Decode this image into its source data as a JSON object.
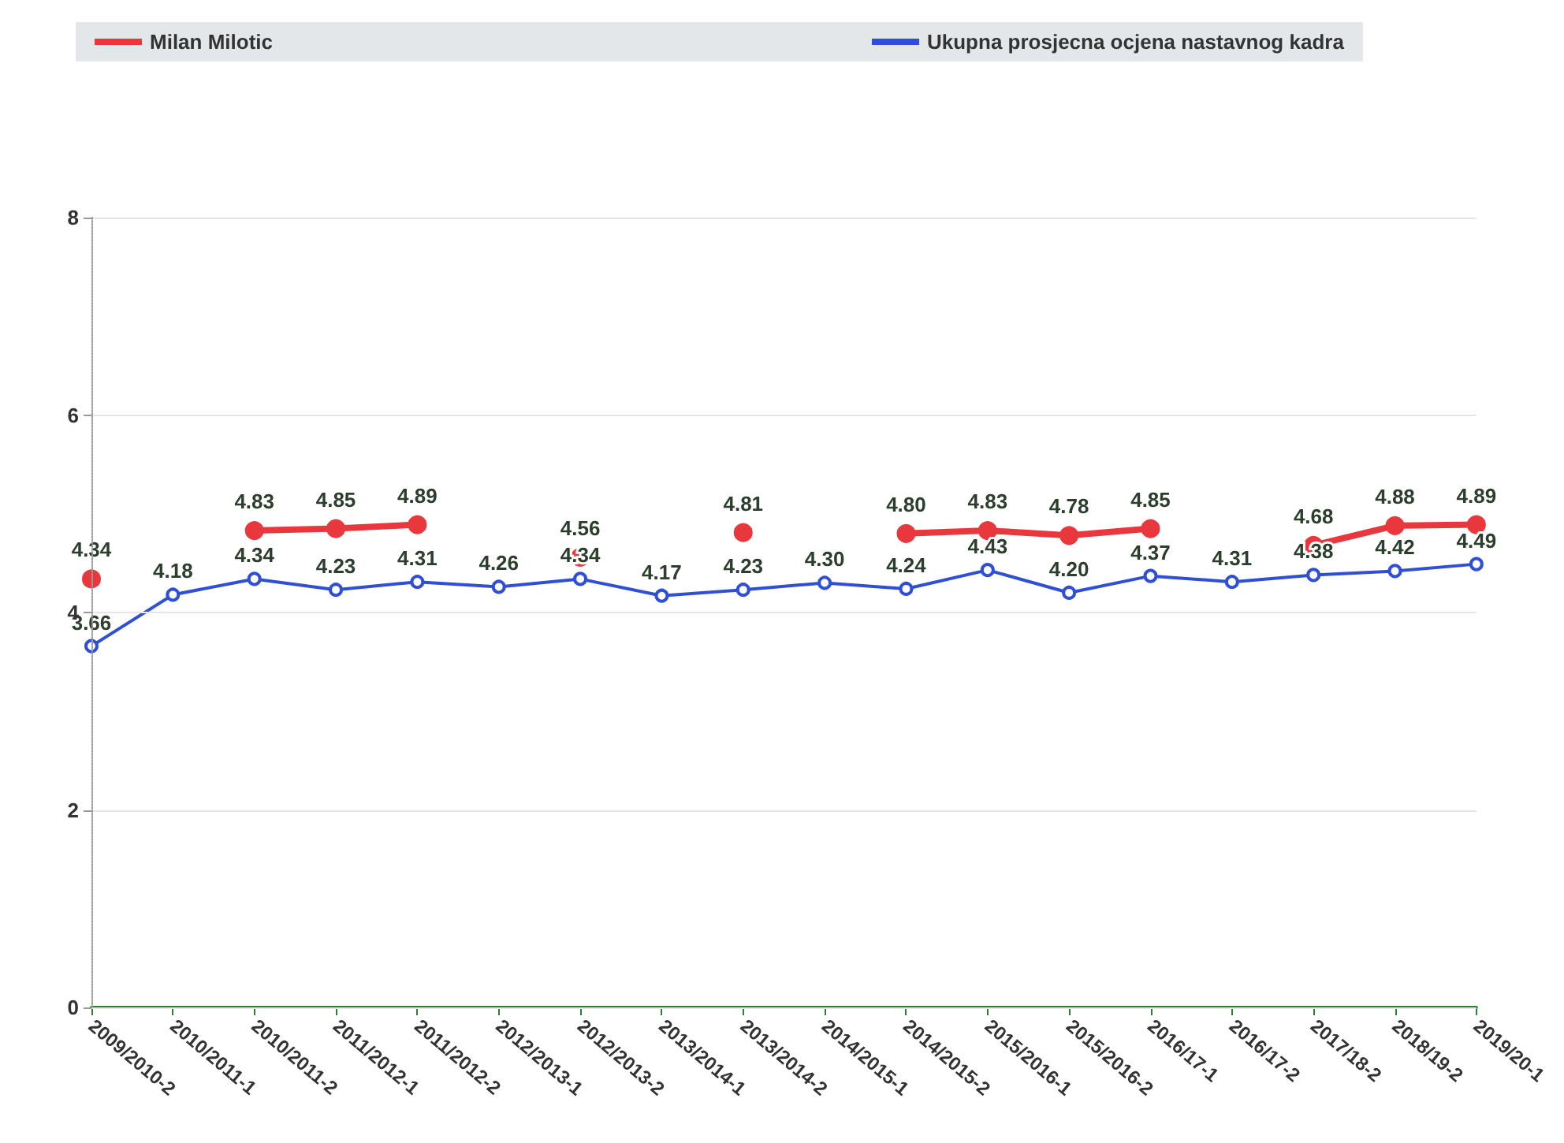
{
  "chart_data": {
    "type": "line",
    "categories": [
      "2009/2010-2",
      "2010/2011-1",
      "2010/2011-2",
      "2011/2012-1",
      "2011/2012-2",
      "2012/2013-1",
      "2012/2013-2",
      "2013/2014-1",
      "2013/2014-2",
      "2014/2015-1",
      "2014/2015-2",
      "2015/2016-1",
      "2015/2016-2",
      "2016/17-1",
      "2016/17-2",
      "2017/18-2",
      "2018/19-2",
      "2019/20-1"
    ],
    "series": [
      {
        "name": "Milan Milotic",
        "color": "#e8383d",
        "values": [
          4.34,
          null,
          4.83,
          4.85,
          4.89,
          null,
          4.56,
          null,
          4.81,
          null,
          4.8,
          4.83,
          4.78,
          4.85,
          null,
          4.68,
          4.88,
          4.89
        ],
        "value_labels": [
          "4.34",
          null,
          "4.83",
          "4.85",
          "4.89",
          null,
          "4.56",
          null,
          "4.81",
          null,
          "4.80",
          "4.83",
          "4.78",
          "4.85",
          null,
          "4.68",
          "4.88",
          "4.89"
        ]
      },
      {
        "name": "Ukupna prosjecna ocjena nastavnog kadra",
        "color": "#2f4fd6",
        "values": [
          3.66,
          4.18,
          4.34,
          4.23,
          4.31,
          4.26,
          4.34,
          4.17,
          4.23,
          4.3,
          4.24,
          4.43,
          4.2,
          4.37,
          4.31,
          4.38,
          4.42,
          4.49
        ],
        "value_labels": [
          "3.66",
          "4.18",
          "4.34",
          "4.23",
          "4.31",
          "4.26",
          "4.34",
          "4.17",
          "4.23",
          "4.30",
          "4.24",
          "4.43",
          "4.20",
          "4.37",
          "4.31",
          "4.38",
          "4.42",
          "4.49"
        ]
      }
    ],
    "ylim": [
      0,
      8
    ],
    "yticks": [
      0,
      2,
      4,
      6,
      8
    ],
    "grid": "y",
    "legend": "top",
    "marker": "circle",
    "line_style": "solid"
  }
}
